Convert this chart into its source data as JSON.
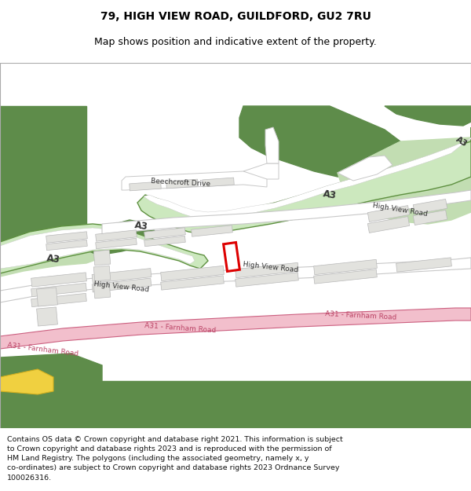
{
  "title_line1": "79, HIGH VIEW ROAD, GUILDFORD, GU2 7RU",
  "title_line2": "Map shows position and indicative extent of the property.",
  "footer_lines": [
    "Contains OS data © Crown copyright and database right 2021. This information is subject",
    "to Crown copyright and database rights 2023 and is reproduced with the permission of",
    "HM Land Registry. The polygons (including the associated geometry, namely x, y",
    "co-ordinates) are subject to Crown copyright and database rights 2023 Ordnance Survey",
    "100026316."
  ],
  "bg": "#ffffff",
  "map_bg": "#f8f8f5",
  "green_dark": "#5e8c4a",
  "green_light": "#c2ddb2",
  "a3_fill": "#cce8be",
  "a3_edge": "#5e9040",
  "a31_fill": "#f2bfcc",
  "a31_edge": "#cc6080",
  "road_fill": "#ffffff",
  "road_edge": "#c8c8c8",
  "bld_fill": "#e2e2de",
  "bld_edge": "#b8b8b8",
  "plot_fill": "#ffffff",
  "plot_edge": "#dd0000",
  "plot_lw": 2.2,
  "title_fs": 10,
  "sub_fs": 9,
  "footer_fs": 6.8,
  "lbl_fs": 6.5,
  "a3_lbl_fs": 8.5,
  "a31_lbl_color": "#bb4466",
  "lbl_color": "#333333"
}
